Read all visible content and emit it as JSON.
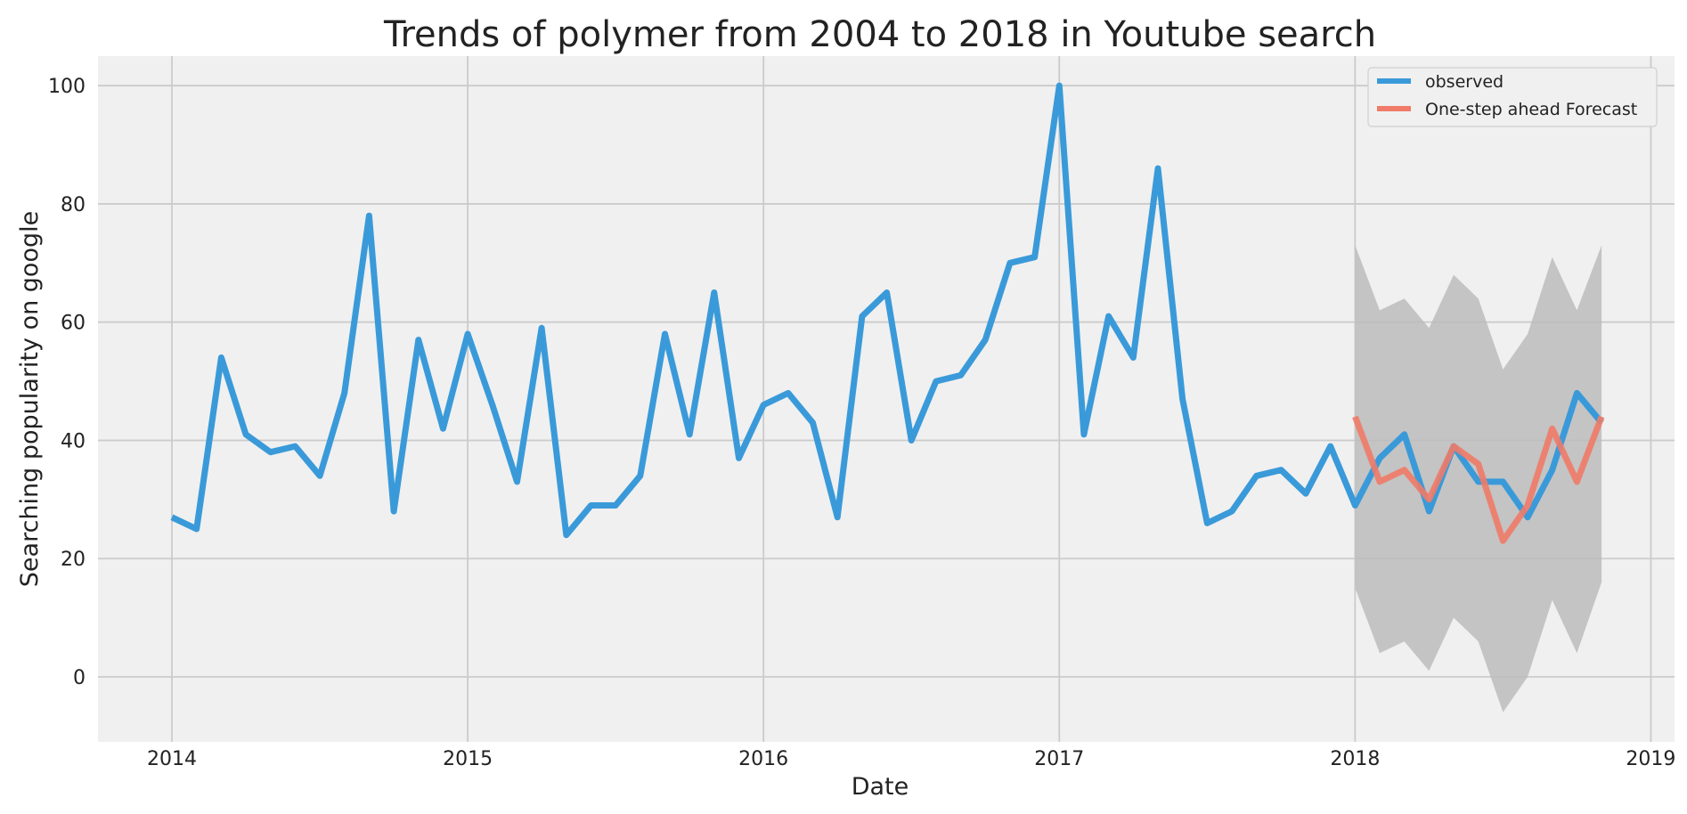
{
  "chart_data": {
    "type": "line",
    "title": "Trends of polymer from 2004 to 2018 in Youtube search",
    "xlabel": "Date",
    "ylabel": "Searching popularity on google",
    "xlim": [
      2013.75,
      2019.08
    ],
    "ylim": [
      -11,
      105
    ],
    "x_ticks": [
      2014,
      2015,
      2016,
      2017,
      2018,
      2019
    ],
    "y_ticks": [
      0,
      20,
      40,
      60,
      80,
      100
    ],
    "grid": true,
    "legend_position": "top-right",
    "start": "2014-01",
    "series": [
      {
        "name": "observed",
        "color": "#3a9ad9",
        "start": "2014-01",
        "values": [
          27,
          25,
          54,
          41,
          38,
          39,
          34,
          48,
          78,
          28,
          57,
          42,
          58,
          46,
          33,
          59,
          24,
          29,
          29,
          34,
          58,
          41,
          65,
          37,
          46,
          48,
          43,
          27,
          61,
          65,
          40,
          50,
          51,
          57,
          70,
          71,
          100,
          41,
          61,
          54,
          86,
          47,
          26,
          28,
          34,
          35,
          31,
          39,
          29,
          37,
          41,
          28,
          39,
          33,
          33,
          27,
          35,
          48,
          43
        ]
      },
      {
        "name": "One-step ahead Forecast",
        "color": "#f07b68",
        "start": "2018-01",
        "values": [
          44,
          33,
          35,
          30,
          39,
          36,
          23,
          29,
          42,
          33,
          44
        ]
      }
    ],
    "confidence_band": {
      "start": "2018-01",
      "color": "#bcbcbc",
      "lower": [
        15,
        4,
        6,
        1,
        10,
        6,
        -6,
        0,
        13,
        4,
        16
      ],
      "upper": [
        73,
        62,
        64,
        59,
        68,
        64,
        52,
        58,
        71,
        62,
        73
      ]
    }
  }
}
